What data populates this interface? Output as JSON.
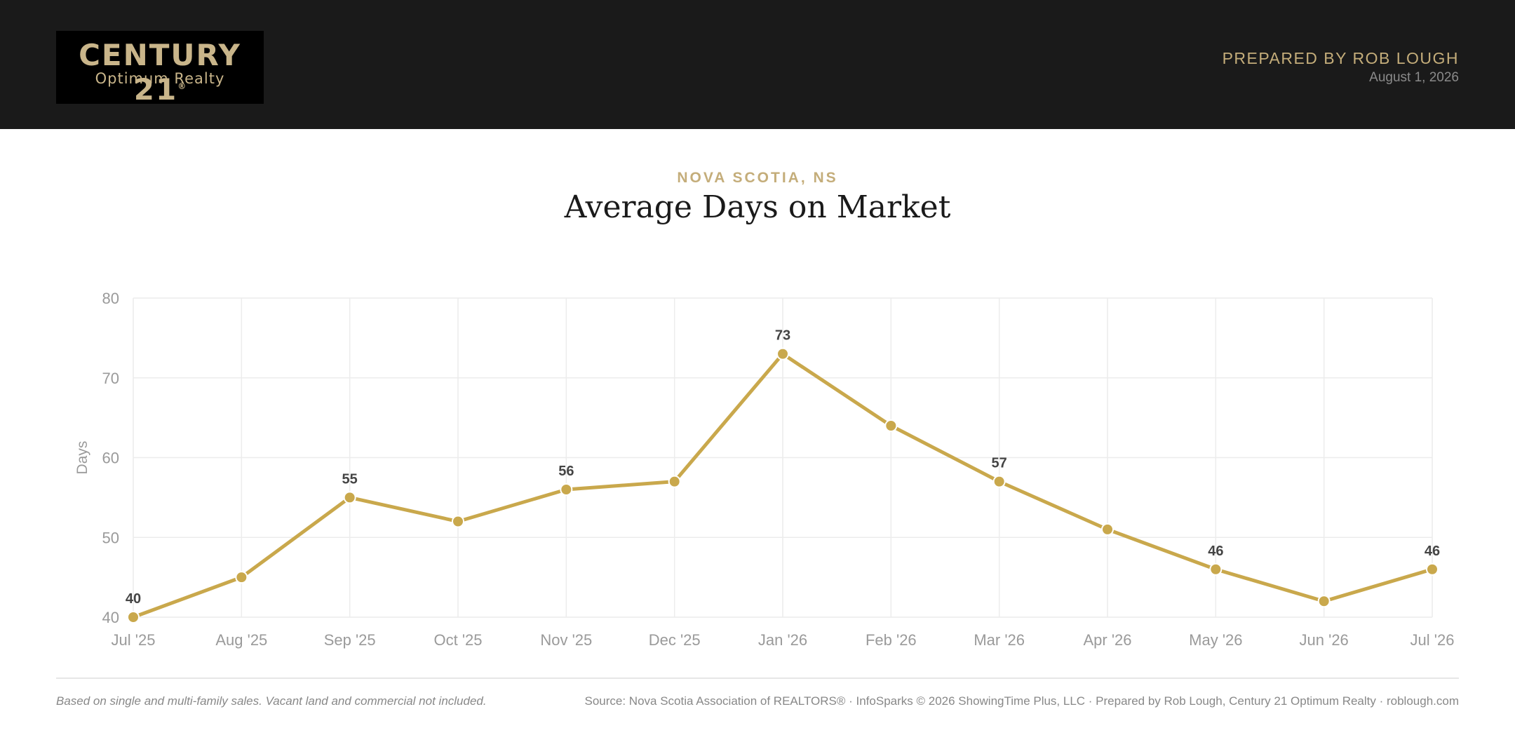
{
  "header": {
    "logo_line1": "CENTURY 21",
    "logo_reg": "®",
    "logo_line2": "Optimum Realty",
    "prepared_by": "PREPARED BY ROB LOUGH",
    "date": "August 1, 2026"
  },
  "region": "NOVA SCOTIA, NS",
  "title": "Average Days on Market",
  "footer": {
    "note": "Based on single and multi-family sales. Vacant land and commercial not included.",
    "source": "Source: Nova Scotia Association of REALTORS® · InfoSparks © 2026 ShowingTime Plus, LLC · Prepared by Rob Lough, Century 21 Optimum Realty · roblough.com"
  },
  "colors": {
    "accent": "#c9a84c",
    "header_bg": "#1a1a1a",
    "grid": "#ececec"
  },
  "chart_data": {
    "type": "line",
    "title": "Average Days on Market",
    "xlabel": "",
    "ylabel": "Days",
    "ylim": [
      40,
      80
    ],
    "yticks": [
      40,
      50,
      60,
      70,
      80
    ],
    "grid": true,
    "categories": [
      "Jul '25",
      "Aug '25",
      "Sep '25",
      "Oct '25",
      "Nov '25",
      "Dec '25",
      "Jan '26",
      "Feb '26",
      "Mar '26",
      "Apr '26",
      "May '26",
      "Jun '26",
      "Jul '26"
    ],
    "series": [
      {
        "values": [
          40,
          45,
          55,
          52,
          56,
          57,
          73,
          64,
          57,
          51,
          46,
          42,
          46
        ]
      }
    ],
    "data_labels": [
      {
        "index": 0,
        "text": "40"
      },
      {
        "index": 2,
        "text": "55"
      },
      {
        "index": 4,
        "text": "56"
      },
      {
        "index": 6,
        "text": "73"
      },
      {
        "index": 8,
        "text": "57"
      },
      {
        "index": 10,
        "text": "46"
      },
      {
        "index": 12,
        "text": "46"
      }
    ]
  }
}
